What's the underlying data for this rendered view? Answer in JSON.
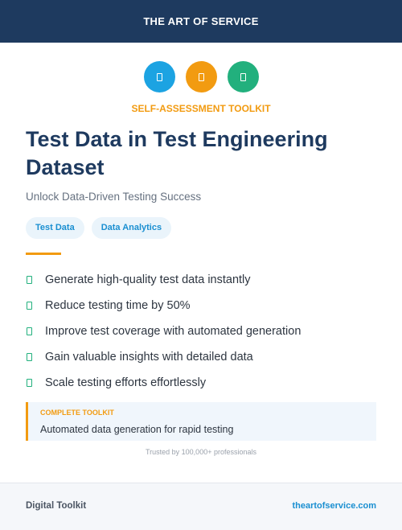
{
  "header": {
    "brand": "THE ART OF SERVICE",
    "background": "#1e3a5f"
  },
  "icons": [
    {
      "name": "document-icon",
      "color": "#1ca3e2"
    },
    {
      "name": "document-icon",
      "color": "#f29b11"
    },
    {
      "name": "document-icon",
      "color": "#22b07d"
    }
  ],
  "kicker": "SELF-ASSESSMENT TOOLKIT",
  "title": "Test Data in Test Engineering Dataset",
  "subtitle": "Unlock Data-Driven Testing Success",
  "tags": [
    "Test Data",
    "Data Analytics"
  ],
  "features": [
    "Generate high-quality test data instantly",
    "Reduce testing time by 50%",
    "Improve test coverage with automated generation",
    "Gain valuable insights with detailed data",
    "Scale testing efforts effortlessly"
  ],
  "callout": {
    "label": "COMPLETE TOOLKIT",
    "text": "Automated data generation for rapid testing"
  },
  "trusted": "Trusted by 100,000+ professionals",
  "footer": {
    "left": "Digital Toolkit",
    "right": "theartofservice.com"
  },
  "colors": {
    "accent": "#f29b11",
    "link": "#1a8fd1",
    "check": "#22b07d"
  }
}
